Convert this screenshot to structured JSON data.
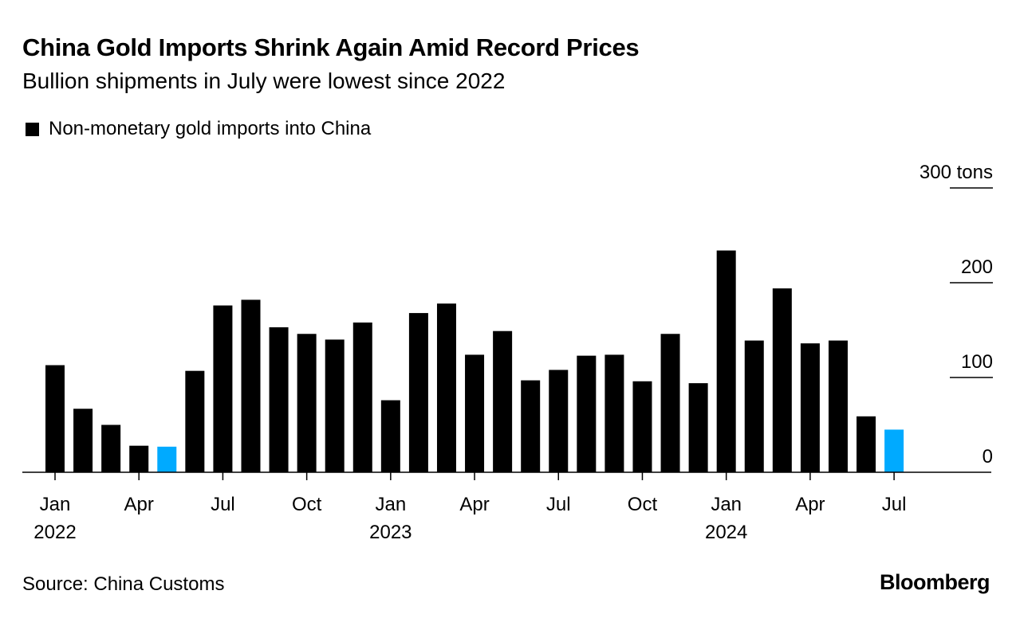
{
  "title": "China Gold Imports Shrink Again Amid Record Prices",
  "subtitle": "Bullion shipments in July were lowest since 2022",
  "source": "Source: China Customs",
  "brand": "Bloomberg",
  "colors": {
    "bar": "#000000",
    "highlight": "#00aaff"
  },
  "chart_data": {
    "type": "bar",
    "title": "China Gold Imports Shrink Again Amid Record Prices",
    "legend": [
      {
        "label": "Non-monetary gold imports into China",
        "color": "#000000"
      }
    ],
    "legend_placement": "top-left",
    "ylabel": "tons",
    "ylim": [
      0,
      300
    ],
    "yticks": [
      {
        "value": 0,
        "label": "0"
      },
      {
        "value": 100,
        "label": "100"
      },
      {
        "value": 200,
        "label": "200"
      },
      {
        "value": 300,
        "label": "300 tons"
      }
    ],
    "xticks": [
      {
        "index": 0,
        "label": "Jan",
        "year": "2022"
      },
      {
        "index": 3,
        "label": "Apr"
      },
      {
        "index": 6,
        "label": "Jul"
      },
      {
        "index": 9,
        "label": "Oct"
      },
      {
        "index": 12,
        "label": "Jan",
        "year": "2023"
      },
      {
        "index": 15,
        "label": "Apr"
      },
      {
        "index": 18,
        "label": "Jul"
      },
      {
        "index": 21,
        "label": "Oct"
      },
      {
        "index": 24,
        "label": "Jan",
        "year": "2024"
      },
      {
        "index": 27,
        "label": "Apr"
      },
      {
        "index": 30,
        "label": "Jul"
      }
    ],
    "categories": [
      "2022-01",
      "2022-02",
      "2022-03",
      "2022-04",
      "2022-05",
      "2022-06",
      "2022-07",
      "2022-08",
      "2022-09",
      "2022-10",
      "2022-11",
      "2022-12",
      "2023-01",
      "2023-02",
      "2023-03",
      "2023-04",
      "2023-05",
      "2023-06",
      "2023-07",
      "2023-08",
      "2023-09",
      "2023-10",
      "2023-11",
      "2023-12",
      "2024-01",
      "2024-02",
      "2024-03",
      "2024-04",
      "2024-05",
      "2024-06",
      "2024-07"
    ],
    "values": [
      113,
      67,
      50,
      28,
      27,
      107,
      176,
      182,
      153,
      146,
      140,
      158,
      76,
      168,
      178,
      124,
      149,
      97,
      108,
      123,
      124,
      96,
      146,
      94,
      234,
      139,
      194,
      136,
      139,
      59,
      45
    ],
    "highlighted": [
      4,
      30
    ],
    "grid": true
  }
}
